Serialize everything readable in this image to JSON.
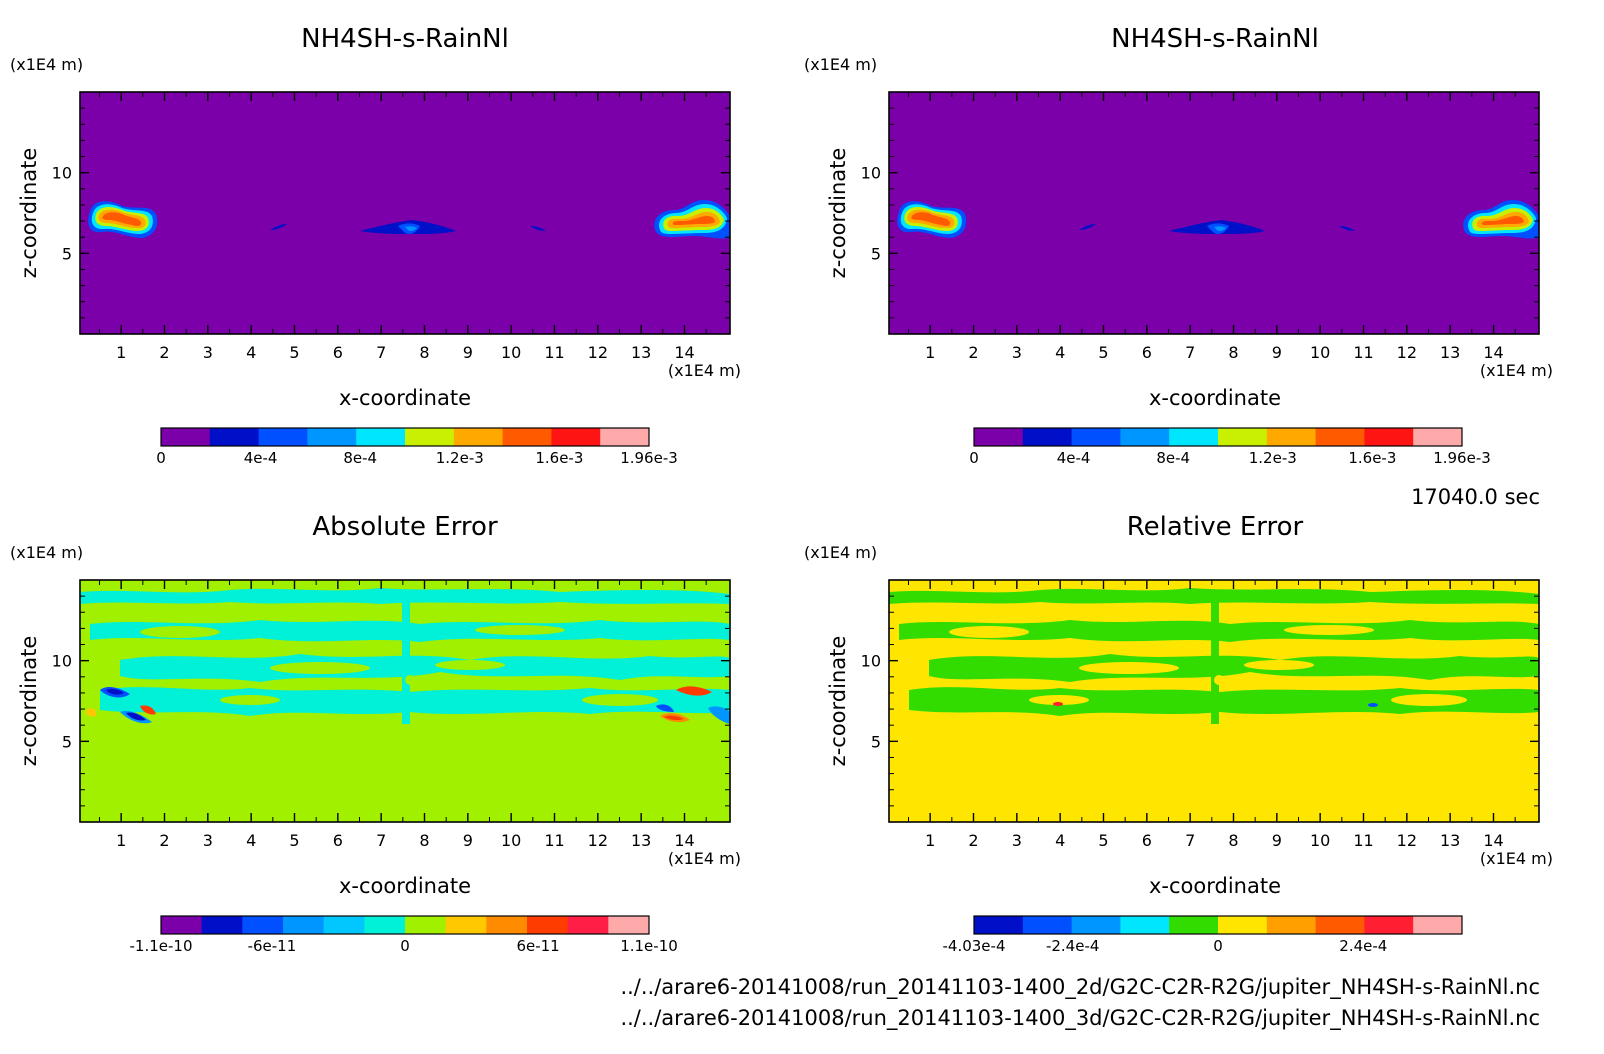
{
  "timestamp_label": "17040.0 sec",
  "file_paths": [
    "../../arare6-20141008/run_20141103-1400_2d/G2C-C2R-R2G/jupiter_NH4SH-s-RainNl.nc",
    "../../arare6-20141008/run_20141103-1400_3d/G2C-C2R-R2G/jupiter_NH4SH-s-RainNl.nc"
  ],
  "colors": {
    "purple": "#7c00aa",
    "green_field": "#a0f000",
    "yellow_field": "#ffe600",
    "cyan": "#00f0d8",
    "bright_green": "#32dc00"
  },
  "chart_data": [
    {
      "type": "heatmap",
      "title": "NH4SH-s-RainNl",
      "xlabel": "x-coordinate",
      "ylabel": "z-coordinate",
      "x_unit_label": "(x1E4 m)",
      "y_unit_label": "(x1E4 m)",
      "x_ticks": [
        "1",
        "2",
        "3",
        "4",
        "5",
        "6",
        "7",
        "8",
        "9",
        "10",
        "11",
        "12",
        "13",
        "14"
      ],
      "y_ticks": [
        "5",
        "10"
      ],
      "xlim": [
        0.05,
        15.05
      ],
      "ylim": [
        0,
        15
      ],
      "colorbar": {
        "colors": [
          "#7c00aa",
          "#0010c8",
          "#0050ff",
          "#0096ff",
          "#00e6ff",
          "#c8f000",
          "#ffa800",
          "#ff5a00",
          "#ff1414",
          "#ffaaaa"
        ],
        "tick_labels": [
          "0",
          "4e-4",
          "8e-4",
          "1.2e-3",
          "1.6e-3",
          "1.96e-3"
        ],
        "tick_values": [
          0,
          0.0004,
          0.0008,
          0.0012,
          0.0016,
          0.00196
        ],
        "range": [
          0,
          0.00196
        ]
      }
    },
    {
      "type": "heatmap",
      "title": "NH4SH-s-RainNl",
      "xlabel": "x-coordinate",
      "ylabel": "z-coordinate",
      "x_unit_label": "(x1E4 m)",
      "y_unit_label": "(x1E4 m)",
      "x_ticks": [
        "1",
        "2",
        "3",
        "4",
        "5",
        "6",
        "7",
        "8",
        "9",
        "10",
        "11",
        "12",
        "13",
        "14"
      ],
      "y_ticks": [
        "5",
        "10"
      ],
      "xlim": [
        0.05,
        15.05
      ],
      "ylim": [
        0,
        15
      ],
      "colorbar": {
        "colors": [
          "#7c00aa",
          "#0010c8",
          "#0050ff",
          "#0096ff",
          "#00e6ff",
          "#c8f000",
          "#ffa800",
          "#ff5a00",
          "#ff1414",
          "#ffaaaa"
        ],
        "tick_labels": [
          "0",
          "4e-4",
          "8e-4",
          "1.2e-3",
          "1.6e-3",
          "1.96e-3"
        ],
        "tick_values": [
          0,
          0.0004,
          0.0008,
          0.0012,
          0.0016,
          0.00196
        ],
        "range": [
          0,
          0.00196
        ]
      }
    },
    {
      "type": "heatmap",
      "title": "Absolute Error",
      "xlabel": "x-coordinate",
      "ylabel": "z-coordinate",
      "x_unit_label": "(x1E4 m)",
      "y_unit_label": "(x1E4 m)",
      "x_ticks": [
        "1",
        "2",
        "3",
        "4",
        "5",
        "6",
        "7",
        "8",
        "9",
        "10",
        "11",
        "12",
        "13",
        "14"
      ],
      "y_ticks": [
        "5",
        "10"
      ],
      "xlim": [
        0.05,
        15.05
      ],
      "ylim": [
        0,
        15
      ],
      "colorbar": {
        "colors": [
          "#7c00aa",
          "#0010c8",
          "#0050ff",
          "#0096ff",
          "#00c8ff",
          "#00f0d8",
          "#a0f000",
          "#ffc800",
          "#ff8c00",
          "#ff3c00",
          "#ff1e46",
          "#ffaaaa"
        ],
        "tick_labels": [
          "-1.1e-10",
          "-6e-11",
          "0",
          "6e-11",
          "1.1e-10"
        ],
        "tick_values": [
          -1.1e-10,
          -6e-11,
          0,
          6e-11,
          1.1e-10
        ],
        "range": [
          -1.1e-10,
          1.1e-10
        ]
      }
    },
    {
      "type": "heatmap",
      "title": "Relative Error",
      "xlabel": "x-coordinate",
      "ylabel": "z-coordinate",
      "x_unit_label": "(x1E4 m)",
      "y_unit_label": "(x1E4 m)",
      "x_ticks": [
        "1",
        "2",
        "3",
        "4",
        "5",
        "6",
        "7",
        "8",
        "9",
        "10",
        "11",
        "12",
        "13",
        "14"
      ],
      "y_ticks": [
        "5",
        "10"
      ],
      "xlim": [
        0.05,
        15.05
      ],
      "ylim": [
        0,
        15
      ],
      "colorbar": {
        "colors": [
          "#0010c8",
          "#0050ff",
          "#0096ff",
          "#00e6ff",
          "#32dc00",
          "#ffe600",
          "#ffa000",
          "#ff5a00",
          "#ff1e32",
          "#ffaaaa"
        ],
        "tick_labels": [
          "-4.03e-4",
          "-2.4e-4",
          "0",
          "2.4e-4"
        ],
        "tick_values": [
          -0.000403,
          -0.00024,
          0,
          0.00024
        ],
        "range": [
          -0.000403,
          0.000403
        ]
      }
    }
  ]
}
